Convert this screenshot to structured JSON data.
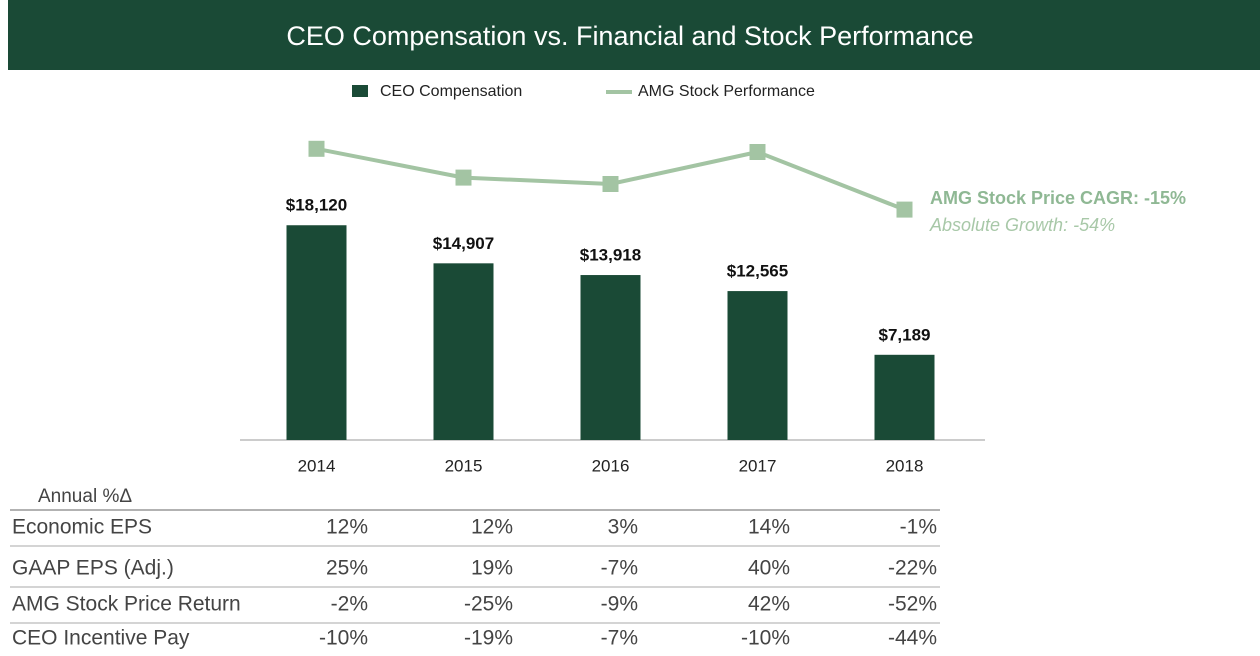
{
  "chart_data": {
    "type": "bar",
    "title": "CEO Compensation vs. Financial and Stock Performance",
    "categories": [
      "2014",
      "2015",
      "2016",
      "2017",
      "2018"
    ],
    "series": [
      {
        "name": "CEO Compensation",
        "color": "#1a4a36",
        "values": [
          18120,
          14907,
          13918,
          12565,
          7189
        ],
        "value_labels": [
          "$18,120",
          "$14,907",
          "$13,918",
          "$12,565",
          "$7,189"
        ]
      },
      {
        "name": "AMG Stock Performance",
        "color": "#a3c4a3",
        "axis": "y2",
        "values": [
          91,
          82,
          80,
          90,
          72
        ]
      }
    ],
    "ylim": [
      0,
      27000
    ],
    "y2lim": [
      0,
      100
    ],
    "grid": false,
    "legend": "top",
    "annotations": [
      "AMG Stock Price CAGR: -15%",
      "Absolute Growth: -54%"
    ]
  },
  "table": {
    "header": "Annual %Δ",
    "rows": [
      [
        "Economic EPS",
        "12%",
        "12%",
        "3%",
        "14%",
        "-1%"
      ],
      [
        "GAAP EPS (Adj.)",
        "25%",
        "19%",
        "-7%",
        "40%",
        "-22%"
      ],
      [
        "AMG Stock Price Return",
        "-2%",
        "-25%",
        "-9%",
        "42%",
        "-52%"
      ],
      [
        "CEO Incentive Pay",
        "-10%",
        "-19%",
        "-7%",
        "-10%",
        "-44%"
      ]
    ]
  }
}
